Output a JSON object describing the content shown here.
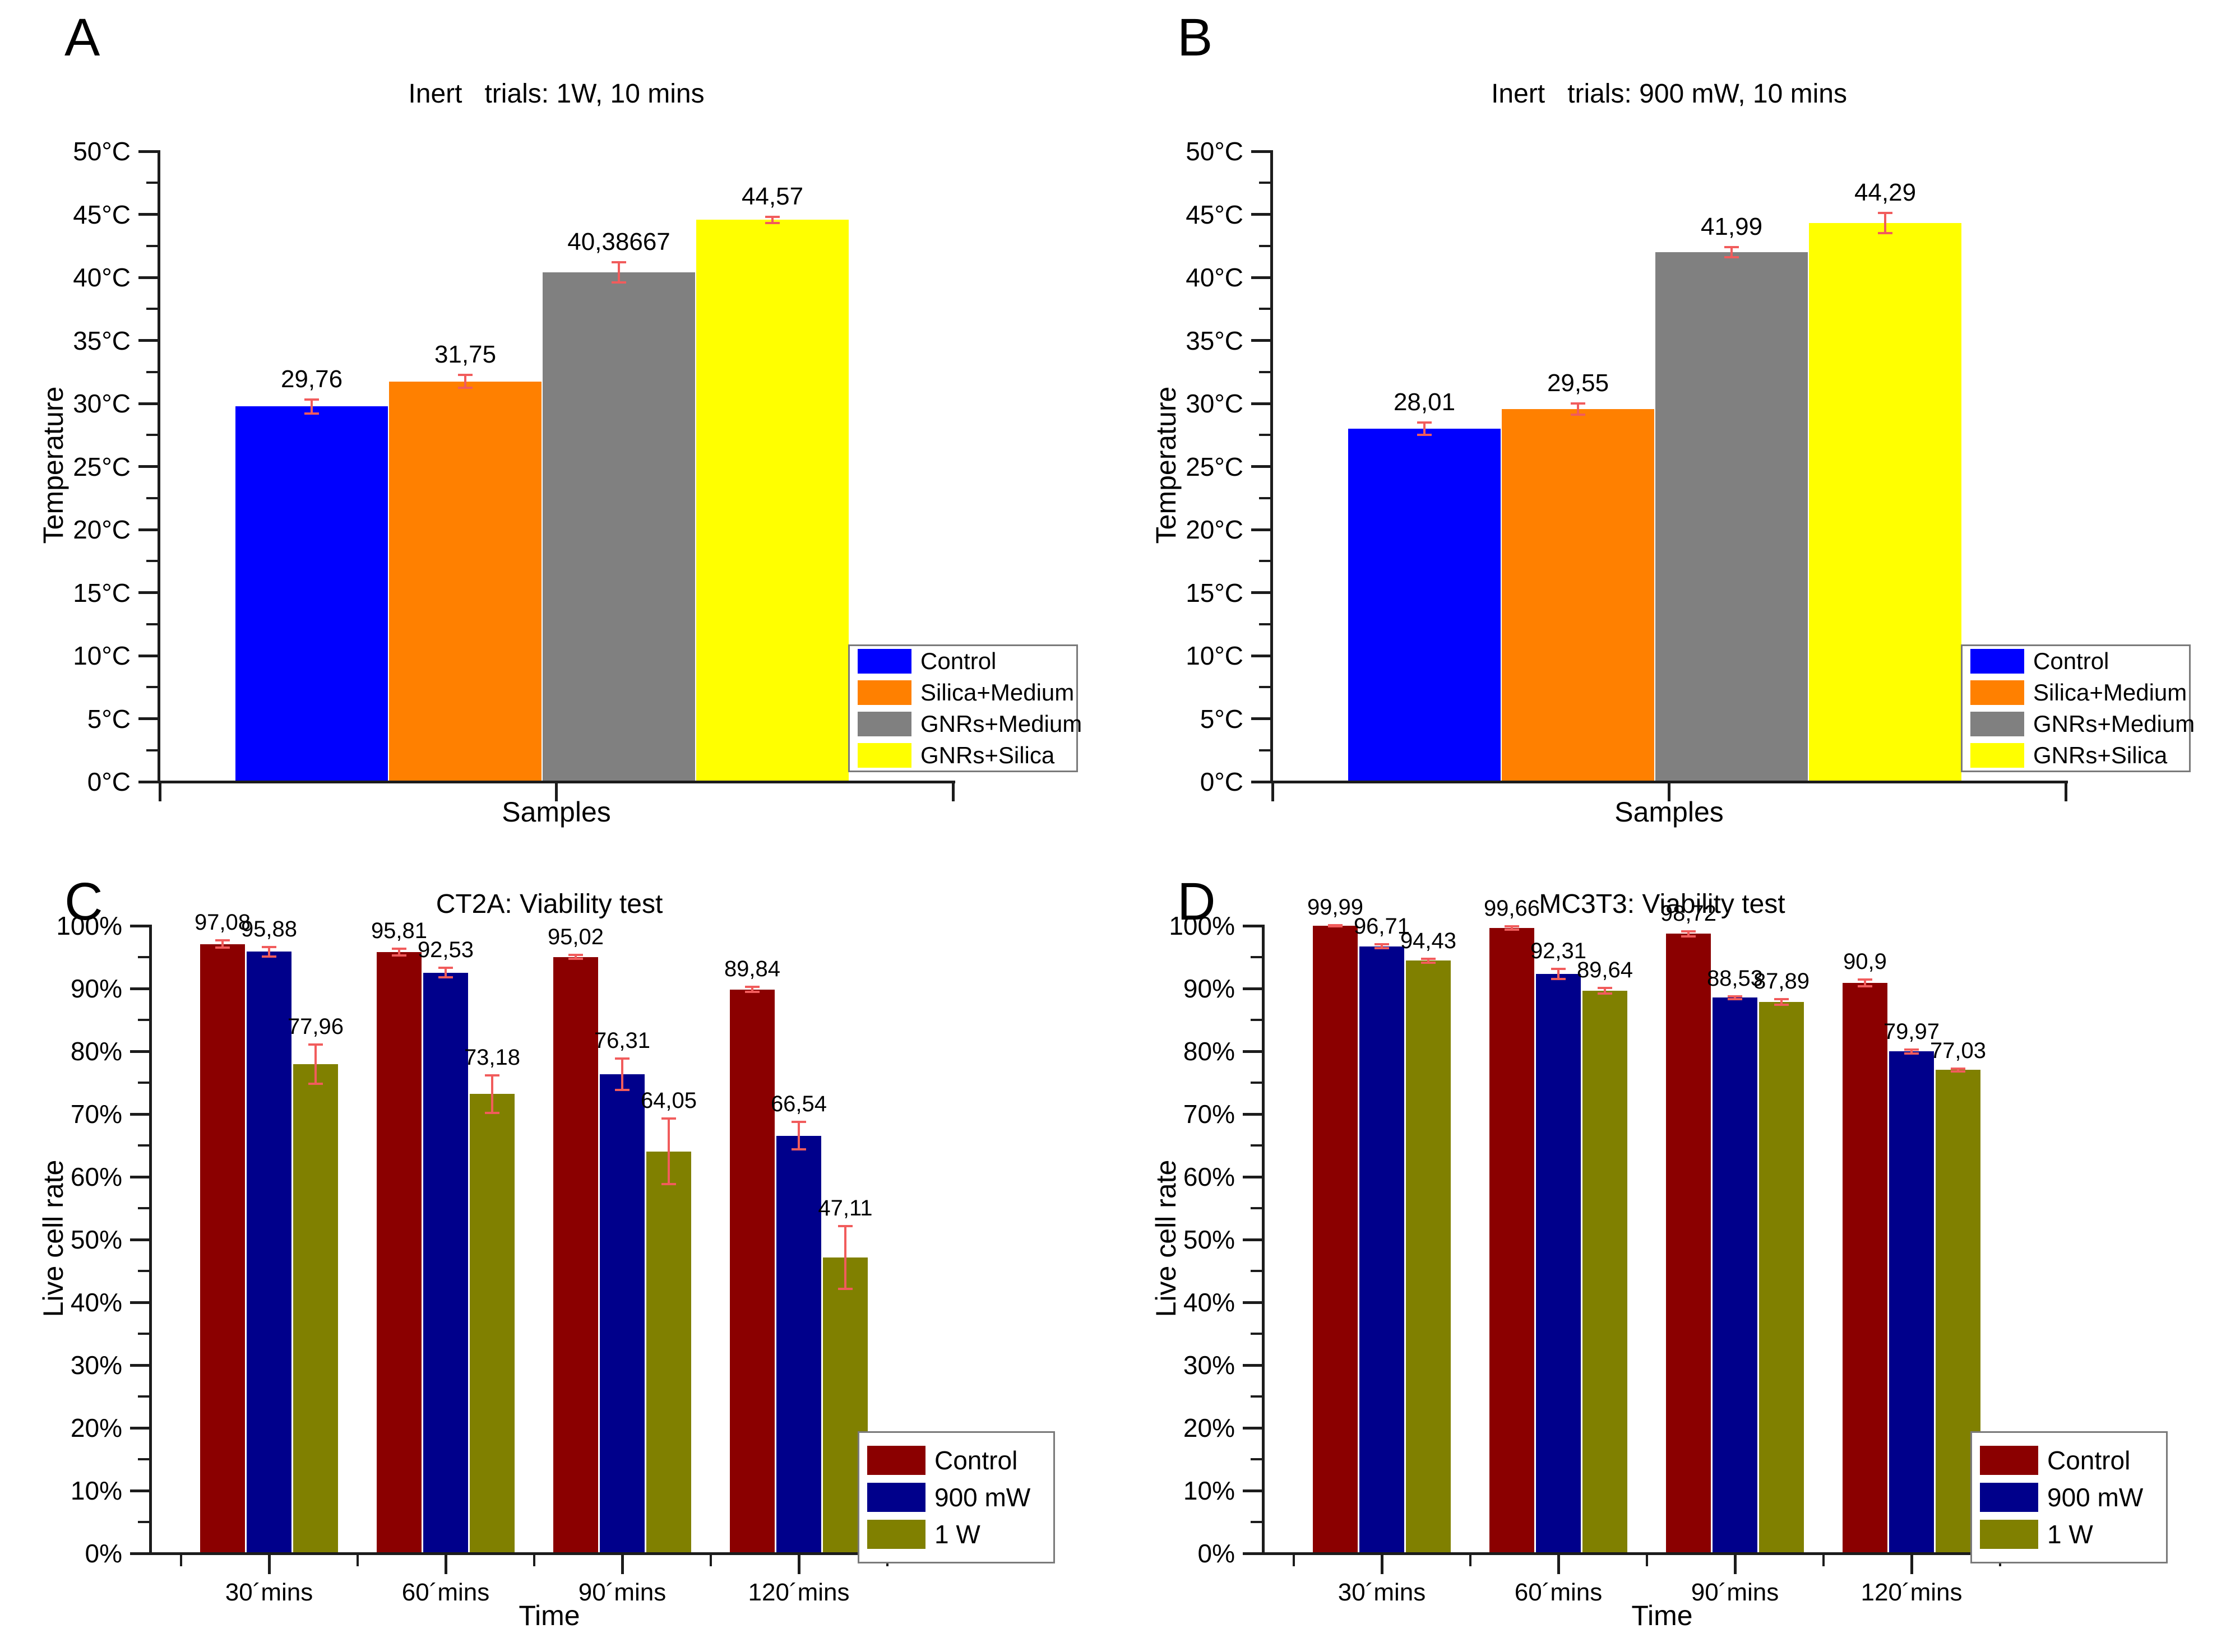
{
  "figure_background": "#ffffff",
  "colors": {
    "axis": "#1c1c1c",
    "error_bar": "#f15c5c",
    "legend_border": "#7a7a7a",
    "legend_background": "#ffffff",
    "text": "#000000"
  },
  "chart_data": [
    {
      "panel_letter": "A",
      "type": "bar",
      "variant": "temp",
      "title": "Inert   trials: 1W, 10 mins",
      "xlabel": "Samples",
      "ylabel": "Temperature",
      "ylim": [
        0,
        50
      ],
      "ytick_major": 5,
      "ytick_minor": 2.5,
      "ytick_labels": [
        "0°C",
        "5°C",
        "10°C",
        "15°C",
        "20°C",
        "25°C",
        "30°C",
        "35°C",
        "40°C",
        "45°C",
        "50°C"
      ],
      "grid": false,
      "legend_position": "bottom-right",
      "legend": [
        {
          "label": "Control",
          "color": "#0000ff"
        },
        {
          "label": "Silica+Medium",
          "color": "#ff8000"
        },
        {
          "label": "GNRs+Medium",
          "color": "#808080"
        },
        {
          "label": "GNRs+Silica",
          "color": "#ffff00"
        }
      ],
      "bars": [
        {
          "category": "Control",
          "value": 29.76,
          "label": "29,76",
          "error": 0.55,
          "color": "#0000ff"
        },
        {
          "category": "Silica+Medium",
          "value": 31.75,
          "label": "31,75",
          "error": 0.5,
          "color": "#ff8000"
        },
        {
          "category": "GNRs+Medium",
          "value": 40.38667,
          "label": "40,38667",
          "error": 0.8,
          "color": "#808080"
        },
        {
          "category": "GNRs+Silica",
          "value": 44.57,
          "label": "44,57",
          "error": 0.25,
          "color": "#ffff00"
        }
      ]
    },
    {
      "panel_letter": "B",
      "type": "bar",
      "variant": "temp",
      "title": "Inert   trials: 900 mW, 10 mins",
      "xlabel": "Samples",
      "ylabel": "Temperature",
      "ylim": [
        0,
        50
      ],
      "ytick_major": 5,
      "ytick_minor": 2.5,
      "ytick_labels": [
        "0°C",
        "5°C",
        "10°C",
        "15°C",
        "20°C",
        "25°C",
        "30°C",
        "35°C",
        "40°C",
        "45°C",
        "50°C"
      ],
      "grid": false,
      "legend_position": "bottom-right",
      "legend": [
        {
          "label": "Control",
          "color": "#0000ff"
        },
        {
          "label": "Silica+Medium",
          "color": "#ff8000"
        },
        {
          "label": "GNRs+Medium",
          "color": "#808080"
        },
        {
          "label": "GNRs+Silica",
          "color": "#ffff00"
        }
      ],
      "bars": [
        {
          "category": "Control",
          "value": 28.01,
          "label": "28,01",
          "error": 0.5,
          "color": "#0000ff"
        },
        {
          "category": "Silica+Medium",
          "value": 29.55,
          "label": "29,55",
          "error": 0.45,
          "color": "#ff8000"
        },
        {
          "category": "GNRs+Medium",
          "value": 41.99,
          "label": "41,99",
          "error": 0.4,
          "color": "#808080"
        },
        {
          "category": "GNRs+Silica",
          "value": 44.29,
          "label": "44,29",
          "error": 0.8,
          "color": "#ffff00"
        }
      ]
    },
    {
      "panel_letter": "C",
      "type": "bar",
      "variant": "viability",
      "title": "CT2A: Viability test",
      "xlabel": "Time",
      "ylabel": "Live cell rate",
      "ylim": [
        0,
        100
      ],
      "ytick_major": 10,
      "ytick_minor": 5,
      "ytick_labels": [
        "0%",
        "10%",
        "20%",
        "30%",
        "40%",
        "50%",
        "60%",
        "70%",
        "80%",
        "90%",
        "100%"
      ],
      "grid": false,
      "legend_position": "bottom-right",
      "categories": [
        "30´mins",
        "60´mins",
        "90´mins",
        "120´mins"
      ],
      "legend": [
        {
          "label": "Control",
          "color": "#8b0000"
        },
        {
          "label": "900 mW",
          "color": "#00008b"
        },
        {
          "label": "1 W",
          "color": "#808000"
        }
      ],
      "series": [
        {
          "name": "Control",
          "color": "#8b0000",
          "values": [
            97.08,
            95.81,
            95.02,
            89.84
          ],
          "labels": [
            "97,08",
            "95,81",
            "95,02",
            "89,84"
          ],
          "errors": [
            0.6,
            0.5,
            0.3,
            0.4
          ]
        },
        {
          "name": "900 mW",
          "color": "#00008b",
          "values": [
            95.88,
            92.53,
            76.31,
            66.54
          ],
          "labels": [
            "95,88",
            "92,53",
            "76,31",
            "66,54"
          ],
          "errors": [
            0.75,
            0.75,
            2.5,
            2.2
          ]
        },
        {
          "name": "1 W",
          "color": "#808000",
          "values": [
            77.96,
            73.18,
            64.05,
            47.11
          ],
          "labels": [
            "77,96",
            "73,18",
            "64,05",
            "47,11"
          ],
          "errors": [
            3.1,
            3.0,
            5.2,
            5.0
          ]
        }
      ]
    },
    {
      "panel_letter": "D",
      "type": "bar",
      "variant": "viability",
      "title": "MC3T3: Viability test",
      "xlabel": "Time",
      "ylabel": "Live cell rate",
      "ylim": [
        0,
        100
      ],
      "ytick_major": 10,
      "ytick_minor": 5,
      "ytick_labels": [
        "0%",
        "10%",
        "20%",
        "30%",
        "40%",
        "50%",
        "60%",
        "70%",
        "80%",
        "90%",
        "100%"
      ],
      "grid": false,
      "legend_position": "bottom-right",
      "categories": [
        "30´mins",
        "60´mins",
        "90´mins",
        "120´mins"
      ],
      "legend": [
        {
          "label": "Control",
          "color": "#8b0000"
        },
        {
          "label": "900 mW",
          "color": "#00008b"
        },
        {
          "label": "1 W",
          "color": "#808000"
        }
      ],
      "series": [
        {
          "name": "Control",
          "color": "#8b0000",
          "values": [
            99.99,
            99.66,
            98.72,
            90.9
          ],
          "labels": [
            "99,99",
            "99,66",
            "98,72",
            "90,9"
          ],
          "errors": [
            0.1,
            0.25,
            0.4,
            0.55
          ]
        },
        {
          "name": "900 mW",
          "color": "#00008b",
          "values": [
            96.71,
            92.31,
            88.53,
            79.97
          ],
          "labels": [
            "96,71",
            "92,31",
            "88,53",
            "79,97"
          ],
          "errors": [
            0.3,
            0.8,
            0.2,
            0.3
          ]
        },
        {
          "name": "1 W",
          "color": "#808000",
          "values": [
            94.43,
            89.64,
            87.89,
            77.03
          ],
          "labels": [
            "94,43",
            "89,64",
            "87,89",
            "77,03"
          ],
          "errors": [
            0.3,
            0.45,
            0.45,
            0.2
          ]
        }
      ]
    }
  ]
}
